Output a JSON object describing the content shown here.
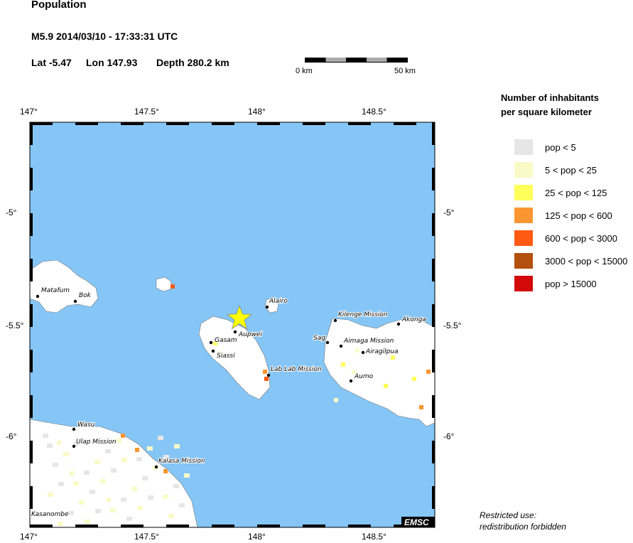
{
  "header": {
    "title": "Population",
    "event": "M5.9  2014/03/10 - 17:33:31 UTC",
    "lat": "Lat -5.47",
    "lon": "Lon 147.93",
    "depth": "Depth 280.2 km"
  },
  "scale_bar": {
    "start_label": "0 km",
    "end_label": "50 km"
  },
  "axes": {
    "lon_ticks": [
      "147°",
      "147.5°",
      "148°",
      "148.5°"
    ],
    "lat_ticks": [
      "-5°",
      "-5.5°",
      "-6°"
    ]
  },
  "epicenter": {
    "lat": -5.47,
    "lon": 147.93,
    "color": "#ffff00"
  },
  "colors": {
    "sea": "#85c6f7",
    "land": "#ffffff"
  },
  "legend": {
    "title_line1": "Number of inhabitants",
    "title_line2": "per square kilometer",
    "items": [
      {
        "label": "pop < 5",
        "color": "#e6e6e6"
      },
      {
        "label": "5 < pop < 25",
        "color": "#fafac8"
      },
      {
        "label": "25 < pop < 125",
        "color": "#ffff5a"
      },
      {
        "label": "125 < pop < 600",
        "color": "#fa9632"
      },
      {
        "label": "600 < pop < 3000",
        "color": "#ff5a14"
      },
      {
        "label": "3000 < pop < 15000",
        "color": "#b4500f"
      },
      {
        "label": "pop > 15000",
        "color": "#d20a0a"
      }
    ]
  },
  "places": [
    "Matafum",
    "Bok",
    "Alairo",
    "Aupwei",
    "Gasam",
    "Siassi",
    "Lab Lab Mission",
    "Kilenge Mission",
    "Akonga",
    "Sag",
    "Aimaga Mission",
    "Airagilpua",
    "Aumo",
    "Wasu",
    "Ulap Mission",
    "Kalasa Mission",
    "Kasanombe"
  ],
  "logo": "EMSC",
  "footer": {
    "line1": "Restricted use:",
    "line2": "redistribution forbidden"
  }
}
